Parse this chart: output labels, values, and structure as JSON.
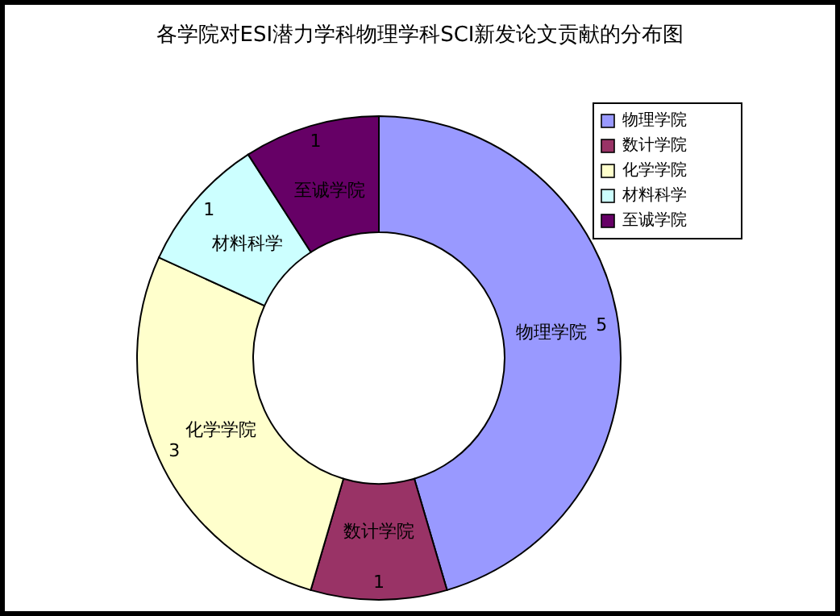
{
  "chart_data": {
    "type": "donut",
    "title": "各学院对ESI潜力学科物理学科SCI新发论文贡献的分布图",
    "categories": [
      "物理学院",
      "数计学院",
      "化学学院",
      "材料科学",
      "至诚学院"
    ],
    "values": [
      5,
      1,
      3,
      1,
      1
    ],
    "colors": [
      "#9999ff",
      "#993366",
      "#ffffcc",
      "#ccffff",
      "#660066"
    ],
    "data_labels": true,
    "legend": "right"
  }
}
